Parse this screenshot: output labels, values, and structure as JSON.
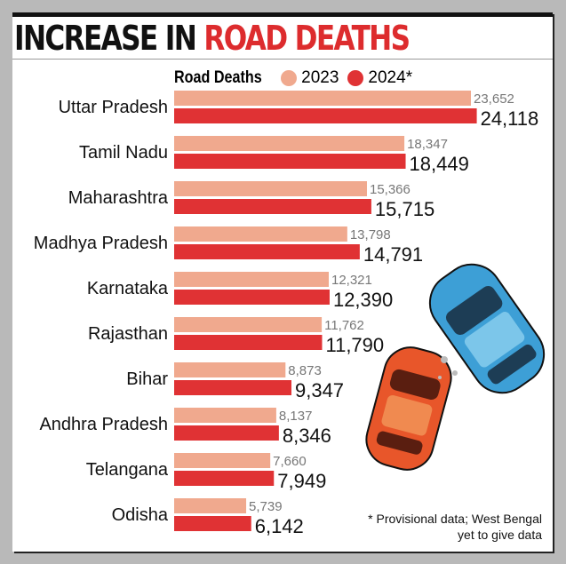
{
  "chart_data": {
    "type": "bar",
    "orientation": "horizontal",
    "title_part1": "INCREASE IN",
    "title_part2": "ROAD DEATHS",
    "legend_title": "Road Deaths",
    "legend_position": "top",
    "categories": [
      "Uttar Pradesh",
      "Tamil Nadu",
      "Maharashtra",
      "Madhya Pradesh",
      "Karnataka",
      "Rajasthan",
      "Bihar",
      "Andhra Pradesh",
      "Telangana",
      "Odisha"
    ],
    "series": [
      {
        "name": "2023",
        "color": "#f0a98e",
        "values": [
          23652,
          18347,
          15366,
          13798,
          12321,
          11762,
          8873,
          8137,
          7660,
          5739
        ],
        "labels": [
          "23,652",
          "18,347",
          "15,366",
          "13,798",
          "12,321",
          "11,762",
          "8,873",
          "8,137",
          "7,660",
          "5,739"
        ]
      },
      {
        "name": "2024*",
        "color": "#e03234",
        "values": [
          24118,
          18449,
          15715,
          14791,
          12390,
          11790,
          9347,
          8346,
          7949,
          6142
        ],
        "labels": [
          "24,118",
          "18,449",
          "15,715",
          "14,791",
          "12,390",
          "11,790",
          "9,347",
          "8,346",
          "7,949",
          "6,142"
        ]
      }
    ],
    "grid": false
  },
  "footnote": {
    "line1": "* Provisional data; West Bengal",
    "line2": "yet to give data"
  },
  "colors": {
    "title_red": "#dd2c2e",
    "car_blue": "#3d9fd6",
    "car_orange": "#e8562a"
  }
}
